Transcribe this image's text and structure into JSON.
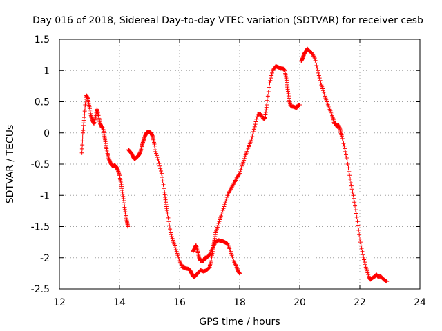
{
  "chart_data": {
    "type": "scatter",
    "title": "Day 016 of 2018, Sidereal Day-to-day VTEC variation (SDTVAR) for receiver cesb",
    "xlabel": "GPS time / hours",
    "ylabel": "SDTVAR / TECUs",
    "xlim": [
      12,
      24
    ],
    "ylim": [
      -2.5,
      1.5
    ],
    "xticks": [
      12,
      14,
      16,
      18,
      20,
      22,
      24
    ],
    "xtick_labels": [
      "12",
      "14",
      "16",
      "18",
      "20",
      "22",
      "24"
    ],
    "yticks": [
      -2.5,
      -2,
      -1.5,
      -1,
      -0.5,
      0,
      0.5,
      1,
      1.5
    ],
    "ytick_labels": [
      "-2.5",
      "-2",
      "-1.5",
      "-1",
      "-0.5",
      "0",
      "0.5",
      "1",
      "1.5"
    ],
    "grid": true,
    "marker": "+",
    "color": "#ff0000",
    "series": [
      {
        "name": "SDTVAR",
        "segments": [
          [
            [
              12.75,
              -0.32
            ],
            [
              12.78,
              0.0
            ],
            [
              12.82,
              0.2
            ],
            [
              12.86,
              0.45
            ],
            [
              12.9,
              0.6
            ],
            [
              12.95,
              0.55
            ],
            [
              13.0,
              0.42
            ],
            [
              13.05,
              0.28
            ],
            [
              13.1,
              0.2
            ],
            [
              13.15,
              0.15
            ],
            [
              13.2,
              0.25
            ],
            [
              13.25,
              0.38
            ],
            [
              13.3,
              0.28
            ],
            [
              13.35,
              0.16
            ],
            [
              13.4,
              0.1
            ],
            [
              13.45,
              0.08
            ],
            [
              13.5,
              -0.05
            ],
            [
              13.55,
              -0.2
            ],
            [
              13.6,
              -0.33
            ],
            [
              13.65,
              -0.42
            ],
            [
              13.7,
              -0.48
            ],
            [
              13.75,
              -0.52
            ],
            [
              13.8,
              -0.53
            ],
            [
              13.85,
              -0.52
            ],
            [
              13.9,
              -0.55
            ],
            [
              13.95,
              -0.6
            ],
            [
              14.0,
              -0.68
            ],
            [
              14.05,
              -0.8
            ],
            [
              14.1,
              -0.95
            ],
            [
              14.15,
              -1.12
            ],
            [
              14.2,
              -1.3
            ],
            [
              14.25,
              -1.42
            ],
            [
              14.28,
              -1.5
            ]
          ],
          [
            [
              14.3,
              -0.27
            ],
            [
              14.35,
              -0.3
            ],
            [
              14.4,
              -0.33
            ],
            [
              14.45,
              -0.38
            ],
            [
              14.5,
              -0.42
            ],
            [
              14.55,
              -0.4
            ],
            [
              14.6,
              -0.38
            ],
            [
              14.65,
              -0.35
            ],
            [
              14.7,
              -0.3
            ],
            [
              14.75,
              -0.2
            ],
            [
              14.8,
              -0.12
            ],
            [
              14.85,
              -0.05
            ],
            [
              14.9,
              0.0
            ],
            [
              14.95,
              0.02
            ],
            [
              15.0,
              0.01
            ],
            [
              15.05,
              0.0
            ],
            [
              15.1,
              -0.05
            ],
            [
              15.15,
              -0.15
            ],
            [
              15.2,
              -0.3
            ],
            [
              15.3,
              -0.45
            ],
            [
              15.4,
              -0.65
            ],
            [
              15.5,
              -0.95
            ],
            [
              15.55,
              -1.15
            ],
            [
              15.6,
              -1.3
            ],
            [
              15.7,
              -1.6
            ],
            [
              15.8,
              -1.75
            ],
            [
              15.9,
              -1.9
            ],
            [
              16.0,
              -2.05
            ],
            [
              16.1,
              -2.15
            ],
            [
              16.2,
              -2.17
            ],
            [
              16.3,
              -2.18
            ],
            [
              16.35,
              -2.2
            ],
            [
              16.4,
              -2.25
            ],
            [
              16.45,
              -2.3
            ],
            [
              16.5,
              -2.3
            ],
            [
              16.55,
              -2.28
            ],
            [
              16.6,
              -2.25
            ],
            [
              16.7,
              -2.2
            ],
            [
              16.8,
              -2.22
            ],
            [
              16.9,
              -2.2
            ],
            [
              17.0,
              -2.15
            ],
            [
              17.05,
              -2.05
            ],
            [
              17.1,
              -1.9
            ],
            [
              17.15,
              -1.75
            ],
            [
              17.2,
              -1.6
            ],
            [
              17.3,
              -1.45
            ],
            [
              17.4,
              -1.3
            ],
            [
              17.5,
              -1.15
            ],
            [
              17.6,
              -1.0
            ],
            [
              17.7,
              -0.9
            ],
            [
              17.8,
              -0.82
            ],
            [
              17.9,
              -0.72
            ],
            [
              18.0,
              -0.65
            ],
            [
              18.1,
              -0.5
            ],
            [
              18.2,
              -0.35
            ],
            [
              18.3,
              -0.22
            ],
            [
              18.4,
              -0.1
            ],
            [
              18.5,
              0.1
            ],
            [
              18.6,
              0.3
            ],
            [
              18.7,
              0.3
            ],
            [
              18.8,
              0.22
            ],
            [
              18.85,
              0.25
            ],
            [
              18.9,
              0.45
            ],
            [
              19.0,
              0.8
            ],
            [
              19.1,
              1.0
            ],
            [
              19.2,
              1.07
            ],
            [
              19.3,
              1.05
            ],
            [
              19.4,
              1.03
            ],
            [
              19.45,
              1.03
            ],
            [
              19.5,
              1.0
            ],
            [
              19.55,
              0.88
            ],
            [
              19.6,
              0.7
            ],
            [
              19.65,
              0.52
            ],
            [
              19.7,
              0.43
            ],
            [
              19.8,
              0.42
            ],
            [
              19.9,
              0.4
            ],
            [
              19.95,
              0.45
            ],
            [
              20.0,
              0.45
            ]
          ],
          [
            [
              20.05,
              1.15
            ],
            [
              20.1,
              1.2
            ],
            [
              20.15,
              1.27
            ],
            [
              20.2,
              1.3
            ],
            [
              20.25,
              1.35
            ],
            [
              20.3,
              1.32
            ],
            [
              20.4,
              1.28
            ],
            [
              20.5,
              1.2
            ],
            [
              20.6,
              1.0
            ],
            [
              20.7,
              0.8
            ],
            [
              20.8,
              0.65
            ],
            [
              20.9,
              0.5
            ],
            [
              21.0,
              0.38
            ],
            [
              21.1,
              0.25
            ],
            [
              21.15,
              0.15
            ],
            [
              21.2,
              0.15
            ],
            [
              21.25,
              0.1
            ],
            [
              21.3,
              0.12
            ],
            [
              21.35,
              0.05
            ],
            [
              21.4,
              -0.05
            ],
            [
              21.5,
              -0.25
            ],
            [
              21.6,
              -0.5
            ],
            [
              21.7,
              -0.8
            ],
            [
              21.8,
              -1.05
            ],
            [
              21.9,
              -1.35
            ],
            [
              22.0,
              -1.7
            ],
            [
              22.1,
              -1.95
            ],
            [
              22.2,
              -2.15
            ],
            [
              22.3,
              -2.3
            ],
            [
              22.35,
              -2.35
            ],
            [
              22.4,
              -2.33
            ],
            [
              22.5,
              -2.3
            ],
            [
              22.55,
              -2.27
            ],
            [
              22.6,
              -2.3
            ],
            [
              22.7,
              -2.3
            ],
            [
              22.8,
              -2.35
            ],
            [
              22.9,
              -2.38
            ]
          ],
          [
            [
              16.45,
              -1.9
            ],
            [
              16.5,
              -1.85
            ],
            [
              16.55,
              -1.8
            ],
            [
              16.6,
              -1.9
            ],
            [
              16.65,
              -2.0
            ],
            [
              16.7,
              -2.05
            ],
            [
              16.8,
              -2.05
            ],
            [
              16.85,
              -2.0
            ],
            [
              16.9,
              -2.0
            ],
            [
              17.0,
              -1.95
            ],
            [
              17.1,
              -1.85
            ],
            [
              17.2,
              -1.75
            ],
            [
              17.3,
              -1.72
            ],
            [
              17.4,
              -1.73
            ],
            [
              17.5,
              -1.75
            ],
            [
              17.6,
              -1.78
            ],
            [
              17.7,
              -1.9
            ],
            [
              17.8,
              -2.05
            ],
            [
              17.9,
              -2.15
            ],
            [
              17.95,
              -2.22
            ],
            [
              18.0,
              -2.25
            ]
          ]
        ]
      }
    ]
  }
}
